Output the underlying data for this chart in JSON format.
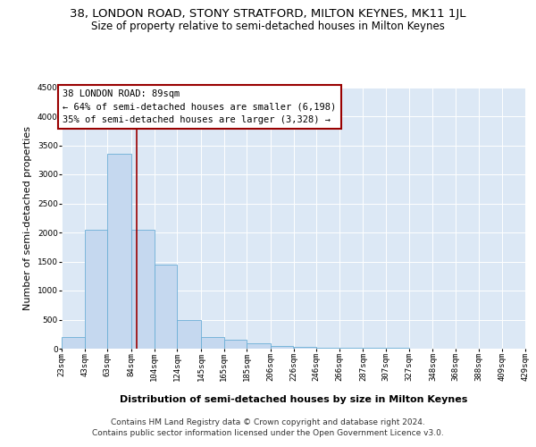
{
  "title_line1": "38, LONDON ROAD, STONY STRATFORD, MILTON KEYNES, MK11 1JL",
  "title_line2": "Size of property relative to semi-detached houses in Milton Keynes",
  "xlabel": "Distribution of semi-detached houses by size in Milton Keynes",
  "ylabel": "Number of semi-detached properties",
  "footer_line1": "Contains HM Land Registry data © Crown copyright and database right 2024.",
  "footer_line2": "Contains public sector information licensed under the Open Government Licence v3.0.",
  "property_label": "38 LONDON ROAD: 89sqm",
  "smaller_label": "← 64% of semi-detached houses are smaller (6,198)",
  "larger_label": "35% of semi-detached houses are larger (3,328) →",
  "bin_edges": [
    23,
    43,
    63,
    84,
    104,
    124,
    145,
    165,
    185,
    206,
    226,
    246,
    266,
    287,
    307,
    327,
    348,
    368,
    388,
    409,
    429
  ],
  "bin_labels": [
    "23sqm",
    "43sqm",
    "63sqm",
    "84sqm",
    "104sqm",
    "124sqm",
    "145sqm",
    "165sqm",
    "185sqm",
    "206sqm",
    "226sqm",
    "246sqm",
    "266sqm",
    "287sqm",
    "307sqm",
    "327sqm",
    "348sqm",
    "368sqm",
    "388sqm",
    "409sqm",
    "429sqm"
  ],
  "bar_heights": [
    200,
    2050,
    3350,
    2050,
    1450,
    490,
    195,
    150,
    100,
    50,
    30,
    20,
    15,
    10,
    8,
    5,
    4,
    3,
    2,
    1
  ],
  "bar_color": "#c5d8ef",
  "bar_edge_color": "#6baed6",
  "vline_color": "#990000",
  "vline_x": 89,
  "ylim": [
    0,
    4500
  ],
  "yticks": [
    0,
    500,
    1000,
    1500,
    2000,
    2500,
    3000,
    3500,
    4000,
    4500
  ],
  "bg_color": "#dce8f5",
  "grid_color": "#ffffff",
  "title_fontsize": 9.5,
  "subtitle_fontsize": 8.5,
  "ylabel_fontsize": 8,
  "xlabel_fontsize": 8,
  "tick_fontsize": 6.5,
  "annotation_fontsize": 7.5,
  "footer_fontsize": 6.5
}
